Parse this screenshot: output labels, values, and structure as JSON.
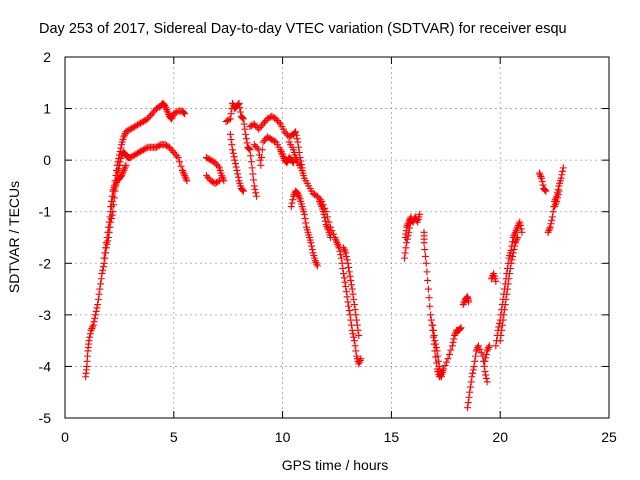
{
  "chart_data": {
    "type": "scatter",
    "title": "Day 253 of 2017, Sidereal Day-to-day VTEC variation (SDTVAR) for receiver esqu",
    "xlabel": "GPS time / hours",
    "ylabel": "SDTVAR / TECUs",
    "xlim": [
      0,
      25
    ],
    "ylim": [
      -5,
      2
    ],
    "xticks": [
      "0",
      "5",
      "10",
      "15",
      "20",
      "25"
    ],
    "yticks": [
      "-5",
      "-4",
      "-3",
      "-2",
      "-1",
      "0",
      "1",
      "2"
    ],
    "grid": true,
    "marker": "+",
    "color": "#ff0000",
    "series": [
      {
        "segments": [
          [
            [
              0.95,
              -4.2
            ],
            [
              1.0,
              -4.0
            ],
            [
              1.05,
              -3.7
            ],
            [
              1.1,
              -3.5
            ],
            [
              1.2,
              -3.3
            ],
            [
              1.3,
              -3.2
            ],
            [
              1.4,
              -3.0
            ],
            [
              1.5,
              -2.8
            ],
            [
              1.6,
              -2.5
            ],
            [
              1.7,
              -2.2
            ],
            [
              1.8,
              -2.0
            ],
            [
              1.9,
              -1.7
            ],
            [
              2.0,
              -1.5
            ],
            [
              2.1,
              -1.2
            ],
            [
              2.2,
              -1.0
            ],
            [
              2.3,
              -0.6
            ],
            [
              2.4,
              -0.3
            ],
            [
              2.5,
              -0.1
            ],
            [
              2.6,
              0.1
            ],
            [
              2.7,
              0.15
            ],
            [
              2.8,
              0.1
            ],
            [
              2.9,
              0.05
            ],
            [
              3.0,
              0.05
            ],
            [
              3.2,
              0.1
            ],
            [
              3.4,
              0.15
            ],
            [
              3.6,
              0.2
            ],
            [
              3.8,
              0.25
            ],
            [
              4.0,
              0.25
            ],
            [
              4.2,
              0.25
            ],
            [
              4.4,
              0.3
            ],
            [
              4.6,
              0.3
            ],
            [
              4.8,
              0.25
            ],
            [
              5.0,
              0.15
            ],
            [
              5.2,
              0.05
            ],
            [
              5.4,
              -0.2
            ],
            [
              5.5,
              -0.3
            ],
            [
              5.6,
              -0.4
            ]
          ],
          [
            [
              1.8,
              -1.9
            ],
            [
              1.9,
              -1.6
            ],
            [
              2.0,
              -1.3
            ],
            [
              2.1,
              -1.0
            ],
            [
              2.2,
              -0.7
            ],
            [
              2.3,
              -0.4
            ],
            [
              2.4,
              -0.1
            ],
            [
              2.5,
              0.1
            ],
            [
              2.6,
              0.3
            ],
            [
              2.7,
              0.45
            ],
            [
              2.8,
              0.55
            ],
            [
              3.0,
              0.6
            ],
            [
              3.2,
              0.65
            ],
            [
              3.4,
              0.7
            ],
            [
              3.6,
              0.75
            ],
            [
              3.8,
              0.8
            ],
            [
              4.0,
              0.9
            ],
            [
              4.2,
              1.0
            ],
            [
              4.4,
              1.05
            ],
            [
              4.5,
              1.1
            ],
            [
              4.6,
              1.05
            ],
            [
              4.7,
              0.95
            ],
            [
              4.8,
              0.85
            ],
            [
              4.9,
              0.8
            ],
            [
              5.0,
              0.9
            ],
            [
              5.2,
              0.95
            ],
            [
              5.4,
              0.95
            ],
            [
              5.5,
              0.9
            ]
          ],
          [
            [
              2.1,
              -0.9
            ],
            [
              2.2,
              -0.6
            ],
            [
              2.3,
              -0.5
            ],
            [
              2.4,
              -0.4
            ],
            [
              2.5,
              -0.35
            ],
            [
              2.6,
              -0.3
            ],
            [
              2.7,
              -0.2
            ],
            [
              2.8,
              -0.1
            ]
          ],
          [
            [
              6.5,
              0.05
            ],
            [
              6.7,
              0.0
            ],
            [
              6.9,
              -0.05
            ],
            [
              7.1,
              -0.15
            ],
            [
              7.2,
              -0.3
            ],
            [
              7.3,
              -0.4
            ]
          ],
          [
            [
              6.5,
              -0.3
            ],
            [
              6.7,
              -0.4
            ],
            [
              6.9,
              -0.45
            ],
            [
              7.1,
              -0.4
            ]
          ],
          [
            [
              7.4,
              0.75
            ],
            [
              7.6,
              0.8
            ],
            [
              7.7,
              1.1
            ],
            [
              7.8,
              1.0
            ],
            [
              7.9,
              1.05
            ],
            [
              8.0,
              1.1
            ],
            [
              8.1,
              0.85
            ],
            [
              8.2,
              0.8
            ],
            [
              8.3,
              0.5
            ],
            [
              8.4,
              0.25
            ],
            [
              8.5,
              0.2
            ],
            [
              8.6,
              -0.15
            ],
            [
              8.7,
              -0.5
            ],
            [
              8.8,
              -0.7
            ]
          ],
          [
            [
              7.6,
              0.5
            ],
            [
              7.7,
              0.2
            ],
            [
              7.8,
              0.0
            ],
            [
              7.9,
              -0.2
            ],
            [
              8.0,
              -0.4
            ],
            [
              8.1,
              -0.55
            ],
            [
              8.2,
              -0.6
            ]
          ],
          [
            [
              8.5,
              0.65
            ],
            [
              8.7,
              0.7
            ],
            [
              8.9,
              0.6
            ],
            [
              9.1,
              0.7
            ],
            [
              9.3,
              0.8
            ],
            [
              9.5,
              0.85
            ],
            [
              9.7,
              0.8
            ],
            [
              9.9,
              0.7
            ],
            [
              10.1,
              0.55
            ],
            [
              10.3,
              0.45
            ],
            [
              10.5,
              0.5
            ],
            [
              10.6,
              0.55
            ],
            [
              10.7,
              0.35
            ],
            [
              10.8,
              0.05
            ],
            [
              10.9,
              -0.15
            ]
          ],
          [
            [
              8.7,
              0.3
            ],
            [
              8.9,
              0.2
            ],
            [
              9.0,
              -0.1
            ],
            [
              9.1,
              0.35
            ],
            [
              9.3,
              0.45
            ],
            [
              9.5,
              0.4
            ],
            [
              9.7,
              0.35
            ],
            [
              9.9,
              0.2
            ],
            [
              10.0,
              0.1
            ],
            [
              10.1,
              0.0
            ],
            [
              10.2,
              -0.05
            ],
            [
              10.3,
              0.05
            ],
            [
              10.4,
              0.0
            ],
            [
              10.5,
              -0.05
            ]
          ],
          [
            [
              10.3,
              0.35
            ],
            [
              10.5,
              0.2
            ],
            [
              10.6,
              0.05
            ],
            [
              10.7,
              -0.05
            ],
            [
              10.9,
              -0.2
            ],
            [
              11.0,
              -0.35
            ],
            [
              11.2,
              -0.5
            ],
            [
              11.4,
              -0.65
            ],
            [
              11.6,
              -0.7
            ],
            [
              11.8,
              -0.8
            ],
            [
              12.0,
              -1.0
            ],
            [
              12.2,
              -1.3
            ],
            [
              12.4,
              -1.5
            ],
            [
              12.5,
              -1.6
            ],
            [
              12.6,
              -1.7
            ]
          ],
          [
            [
              10.4,
              -0.9
            ],
            [
              10.5,
              -0.7
            ],
            [
              10.6,
              -0.6
            ],
            [
              10.7,
              -0.65
            ],
            [
              10.8,
              -0.75
            ],
            [
              10.9,
              -0.9
            ],
            [
              11.0,
              -1.05
            ],
            [
              11.1,
              -1.3
            ],
            [
              11.2,
              -1.45
            ],
            [
              11.3,
              -1.6
            ],
            [
              11.4,
              -1.8
            ],
            [
              11.5,
              -1.95
            ],
            [
              11.6,
              -2.05
            ]
          ],
          [
            [
              11.7,
              -0.8
            ],
            [
              11.8,
              -0.9
            ],
            [
              11.9,
              -1.05
            ],
            [
              12.0,
              -1.25
            ],
            [
              12.1,
              -1.35
            ],
            [
              12.2,
              -1.5
            ]
          ],
          [
            [
              12.6,
              -1.7
            ],
            [
              12.7,
              -1.9
            ],
            [
              12.8,
              -2.2
            ],
            [
              12.9,
              -2.45
            ],
            [
              13.0,
              -2.75
            ],
            [
              13.1,
              -3.0
            ],
            [
              13.2,
              -3.3
            ],
            [
              13.3,
              -3.5
            ],
            [
              13.4,
              -3.8
            ],
            [
              13.5,
              -3.95
            ],
            [
              13.6,
              -3.85
            ]
          ],
          [
            [
              12.8,
              -1.7
            ],
            [
              12.9,
              -1.8
            ],
            [
              13.0,
              -2.0
            ],
            [
              13.1,
              -2.25
            ],
            [
              13.2,
              -2.5
            ],
            [
              13.3,
              -2.8
            ],
            [
              13.4,
              -3.1
            ],
            [
              13.5,
              -3.4
            ]
          ],
          [
            [
              15.6,
              -1.9
            ],
            [
              15.7,
              -1.6
            ],
            [
              15.8,
              -1.4
            ],
            [
              15.9,
              -1.15
            ],
            [
              16.0,
              -1.2
            ],
            [
              16.1,
              -1.1
            ],
            [
              16.2,
              -1.2
            ],
            [
              16.3,
              -1.05
            ]
          ],
          [
            [
              15.65,
              -1.5
            ],
            [
              15.7,
              -1.3
            ],
            [
              15.8,
              -1.2
            ],
            [
              15.9,
              -1.1
            ]
          ],
          [
            [
              16.5,
              -1.4
            ],
            [
              16.5,
              -1.6
            ],
            [
              16.6,
              -2.0
            ],
            [
              16.7,
              -2.5
            ],
            [
              16.8,
              -3.0
            ],
            [
              16.9,
              -3.3
            ],
            [
              17.0,
              -3.7
            ],
            [
              17.1,
              -4.05
            ],
            [
              17.2,
              -4.2
            ],
            [
              17.3,
              -4.15
            ],
            [
              17.4,
              -4.05
            ],
            [
              17.6,
              -3.85
            ],
            [
              17.8,
              -3.6
            ],
            [
              17.9,
              -3.4
            ],
            [
              18.0,
              -3.3
            ],
            [
              18.1,
              -3.3
            ],
            [
              18.2,
              -3.25
            ]
          ],
          [
            [
              16.9,
              -3.2
            ],
            [
              17.0,
              -3.5
            ],
            [
              17.1,
              -3.7
            ],
            [
              17.2,
              -4.0
            ],
            [
              17.3,
              -4.2
            ]
          ],
          [
            [
              18.3,
              -2.8
            ],
            [
              18.4,
              -2.7
            ],
            [
              18.5,
              -2.65
            ],
            [
              18.55,
              -2.75
            ]
          ],
          [
            [
              18.5,
              -4.8
            ],
            [
              18.6,
              -4.5
            ],
            [
              18.7,
              -4.2
            ],
            [
              18.8,
              -4.0
            ],
            [
              18.9,
              -3.7
            ],
            [
              19.0,
              -3.6
            ],
            [
              19.2,
              -3.8
            ],
            [
              19.3,
              -4.1
            ],
            [
              19.4,
              -4.3
            ]
          ],
          [
            [
              19.3,
              -3.9
            ],
            [
              19.4,
              -3.7
            ],
            [
              19.5,
              -3.6
            ]
          ],
          [
            [
              19.6,
              -2.3
            ],
            [
              19.7,
              -2.2
            ],
            [
              19.8,
              -2.35
            ]
          ],
          [
            [
              19.8,
              -3.6
            ],
            [
              19.9,
              -3.3
            ],
            [
              20.0,
              -3.1
            ],
            [
              20.1,
              -2.8
            ],
            [
              20.2,
              -2.5
            ],
            [
              20.3,
              -2.2
            ],
            [
              20.4,
              -1.9
            ],
            [
              20.5,
              -1.75
            ],
            [
              20.6,
              -1.5
            ],
            [
              20.7,
              -1.4
            ],
            [
              20.8,
              -1.3
            ],
            [
              20.9,
              -1.2
            ],
            [
              21.0,
              -1.4
            ]
          ],
          [
            [
              20.0,
              -3.5
            ],
            [
              20.1,
              -3.2
            ],
            [
              20.2,
              -2.9
            ],
            [
              20.3,
              -2.6
            ],
            [
              20.4,
              -2.3
            ],
            [
              20.5,
              -2.0
            ],
            [
              20.6,
              -1.8
            ],
            [
              20.7,
              -1.6
            ],
            [
              20.8,
              -1.5
            ]
          ],
          [
            [
              21.8,
              -0.25
            ],
            [
              21.9,
              -0.35
            ],
            [
              22.0,
              -0.55
            ],
            [
              22.1,
              -0.6
            ]
          ],
          [
            [
              22.2,
              -1.4
            ],
            [
              22.3,
              -1.3
            ],
            [
              22.4,
              -1.1
            ],
            [
              22.5,
              -0.8
            ],
            [
              22.6,
              -0.7
            ],
            [
              22.7,
              -0.5
            ],
            [
              22.8,
              -0.35
            ],
            [
              22.9,
              -0.15
            ]
          ],
          [
            [
              22.5,
              -0.9
            ],
            [
              22.6,
              -0.8
            ],
            [
              22.7,
              -0.6
            ]
          ]
        ]
      }
    ]
  }
}
